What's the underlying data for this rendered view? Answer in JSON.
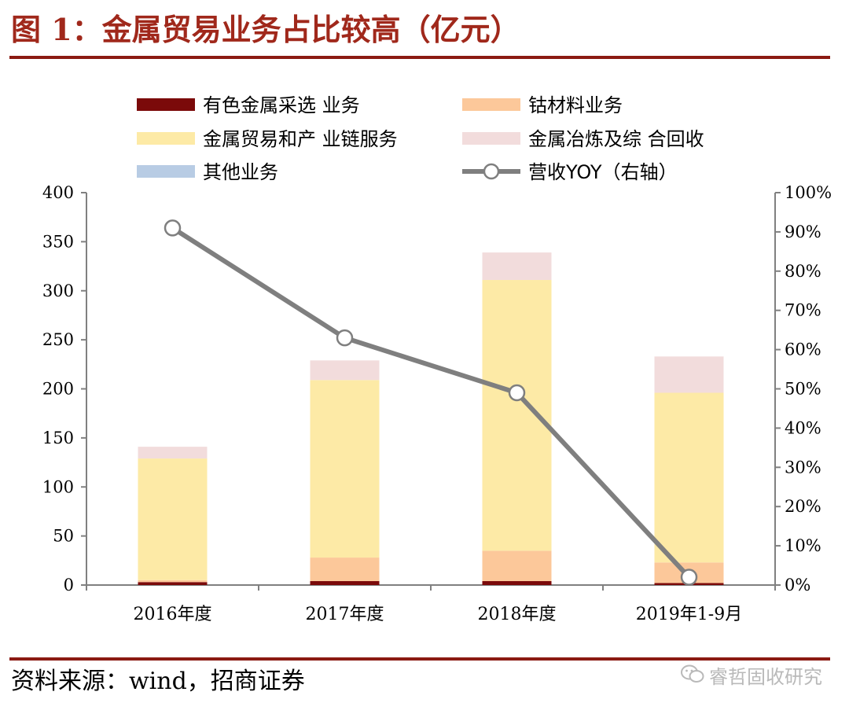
{
  "figure": {
    "title": "图 1：金属贸易业务占比较高（亿元）",
    "source": "资料来源：wind，招商证券",
    "watermark": "睿哲固收研究"
  },
  "colors": {
    "title": "#a0281b",
    "rule": "#8b1a12"
  },
  "chart_data": {
    "type": "bar",
    "stacked": true,
    "title": "",
    "xlabel": "",
    "ylabel": "",
    "categories": [
      "2016年度",
      "2017年度",
      "2018年度",
      "2019年1-9月"
    ],
    "ylim": [
      0,
      400
    ],
    "yticks": [
      0,
      50,
      100,
      150,
      200,
      250,
      300,
      350,
      400
    ],
    "y2lim": [
      0,
      1
    ],
    "y2ticks": [
      "0%",
      "10%",
      "20%",
      "30%",
      "40%",
      "50%",
      "60%",
      "70%",
      "80%",
      "90%",
      "100%"
    ],
    "series": [
      {
        "name": "有色金属采选 业务",
        "color": "#7b0a0a",
        "values": [
          3,
          4,
          4,
          2
        ]
      },
      {
        "name": "钴材料业务",
        "color": "#fcc89a",
        "values": [
          2,
          24,
          31,
          21
        ]
      },
      {
        "name": "金属贸易和产 业链服务",
        "color": "#fdeaa6",
        "values": [
          124,
          181,
          276,
          173
        ]
      },
      {
        "name": "金属冶炼及综 合回收",
        "color": "#f2dcdc",
        "values": [
          12,
          20,
          28,
          37
        ]
      },
      {
        "name": "其他业务",
        "color": "#b8cce4",
        "values": [
          0,
          0,
          0,
          0
        ]
      }
    ],
    "line": {
      "name": "营收YOY（右轴）",
      "axis": "right",
      "color": "#7f7f7f",
      "values": [
        0.91,
        0.63,
        0.49,
        0.02
      ]
    },
    "legend": {
      "position": "top",
      "columns": 2
    },
    "grid": false
  }
}
